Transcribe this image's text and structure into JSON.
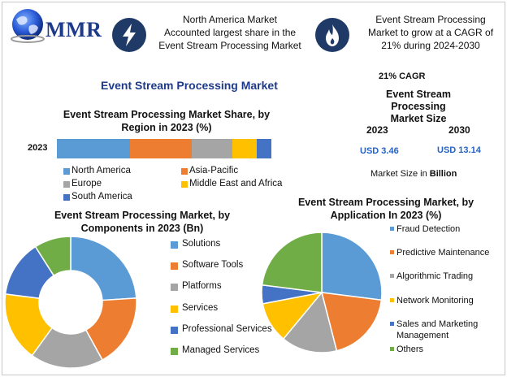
{
  "header": {
    "logo_text": "MMR",
    "box1_text": [
      "North America Market",
      "Accounted largest share in the",
      "Event Stream Processing Market"
    ],
    "box2_text": [
      "Event Stream Processing",
      "Market to grow at a CAGR of",
      "21% during 2024-2030"
    ],
    "box1_icon": "lightning-icon",
    "box2_icon": "flame-icon"
  },
  "main_title": "Event Stream Processing Market",
  "market_size": {
    "cagr_label": "21% CAGR",
    "title": [
      "Event Stream Processing",
      "Market Size"
    ],
    "year1": "2023",
    "year2": "2030",
    "value1": "USD 3.46",
    "value2": "USD 13.14",
    "unit_prefix": "Market Size in ",
    "unit_bold": "Billion"
  },
  "chart_data": [
    {
      "type": "bar",
      "orientation": "horizontal-stacked",
      "title": [
        "Event Stream Processing Market  Share, by",
        "Region in 2023 (%)"
      ],
      "categories": [
        "2023"
      ],
      "series": [
        {
          "name": "North America",
          "values": [
            34
          ],
          "color": "#5b9bd5"
        },
        {
          "name": "Asia-Pacific",
          "values": [
            29
          ],
          "color": "#ed7d31"
        },
        {
          "name": "Europe",
          "values": [
            19
          ],
          "color": "#a5a5a5"
        },
        {
          "name": "Middle East and Africa",
          "values": [
            11
          ],
          "color": "#ffc000"
        },
        {
          "name": "South America",
          "values": [
            7
          ],
          "color": "#4472c4"
        }
      ],
      "legend_placement": "bottom"
    },
    {
      "type": "pie",
      "variant": "donut",
      "title": [
        "Event Stream Processing Market, by",
        "Components in 2023 (Bn)"
      ],
      "labels": [
        "Solutions",
        "Software Tools",
        "Platforms",
        "Services",
        "Professional Services",
        "Managed Services"
      ],
      "values": [
        24,
        18,
        18,
        17,
        14,
        9
      ],
      "colors": [
        "#5b9bd5",
        "#ed7d31",
        "#a5a5a5",
        "#ffc000",
        "#4472c4",
        "#70ad47"
      ],
      "legend_placement": "right"
    },
    {
      "type": "pie",
      "title": [
        "Event Stream Processing Market, by",
        "Application In 2023 (%)"
      ],
      "labels": [
        "Fraud Detection",
        "Predictive Maintenance",
        "Algorithmic Trading",
        "Network Monitoring",
        "Sales and Marketing Management",
        "Others"
      ],
      "values": [
        27,
        19,
        15,
        11,
        5,
        23
      ],
      "colors": [
        "#5b9bd5",
        "#ed7d31",
        "#a5a5a5",
        "#ffc000",
        "#4472c4",
        "#70ad47"
      ],
      "legend_placement": "right"
    }
  ]
}
